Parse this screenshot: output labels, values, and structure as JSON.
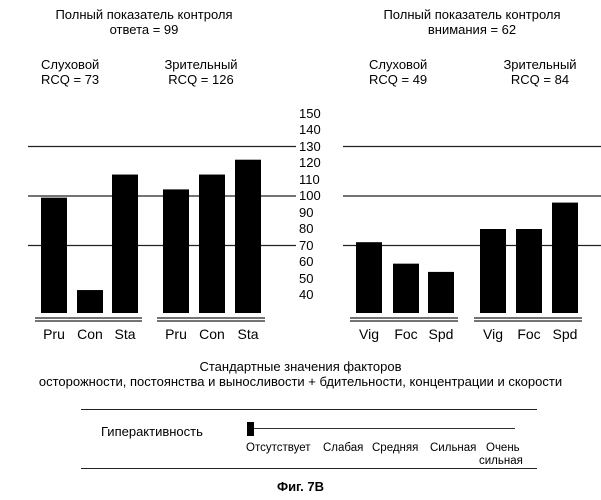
{
  "chart_data": [
    {
      "type": "bar",
      "title": "Полный показатель контроля ответа = 99",
      "title_lines": [
        "Полный показатель контроля",
        "ответа = 99"
      ],
      "groups": [
        {
          "name": "Слуховой",
          "score_label": "RCQ = 73",
          "categories": [
            "Pru",
            "Con",
            "Sta"
          ],
          "values": [
            99,
            43,
            113
          ]
        },
        {
          "name": "Зрительный",
          "score_label": "RCQ = 126",
          "categories": [
            "Pru",
            "Con",
            "Sta"
          ],
          "values": [
            104,
            113,
            122
          ]
        }
      ]
    },
    {
      "type": "bar",
      "title": "Полный показатель контроля внимания = 62",
      "title_lines": [
        "Полный показатель контроля",
        "внимания = 62"
      ],
      "groups": [
        {
          "name": "Слуховой",
          "score_label": "RCQ = 49",
          "categories": [
            "Vig",
            "Foc",
            "Spd"
          ],
          "values": [
            72,
            59,
            54
          ]
        },
        {
          "name": "Зрительный",
          "score_label": "RCQ = 84",
          "categories": [
            "Vig",
            "Foc",
            "Spd"
          ],
          "values": [
            80,
            80,
            96
          ]
        }
      ]
    }
  ],
  "axis": {
    "ticks": [
      "150",
      "140",
      "130",
      "120",
      "110",
      "100",
      "90",
      "80",
      "70",
      "60",
      "50",
      "40"
    ],
    "tick_values": [
      150,
      140,
      130,
      120,
      110,
      100,
      90,
      80,
      70,
      60,
      50,
      40
    ],
    "reference_lines": [
      130,
      100,
      70
    ]
  },
  "xlabel_lines": [
    "Стандартные значения факторов",
    "осторожности, постоянства и выносливости + бдительности, концентрации и скорости"
  ],
  "hyperactivity": {
    "label": "Гиперактивность",
    "levels": [
      "Отсутствует",
      "Слабая",
      "Средняя",
      "Сильная",
      "Очень"
    ],
    "last_level_second_line": "сильная",
    "selected_level": 0
  },
  "figure_caption": "Фиг. 7B"
}
